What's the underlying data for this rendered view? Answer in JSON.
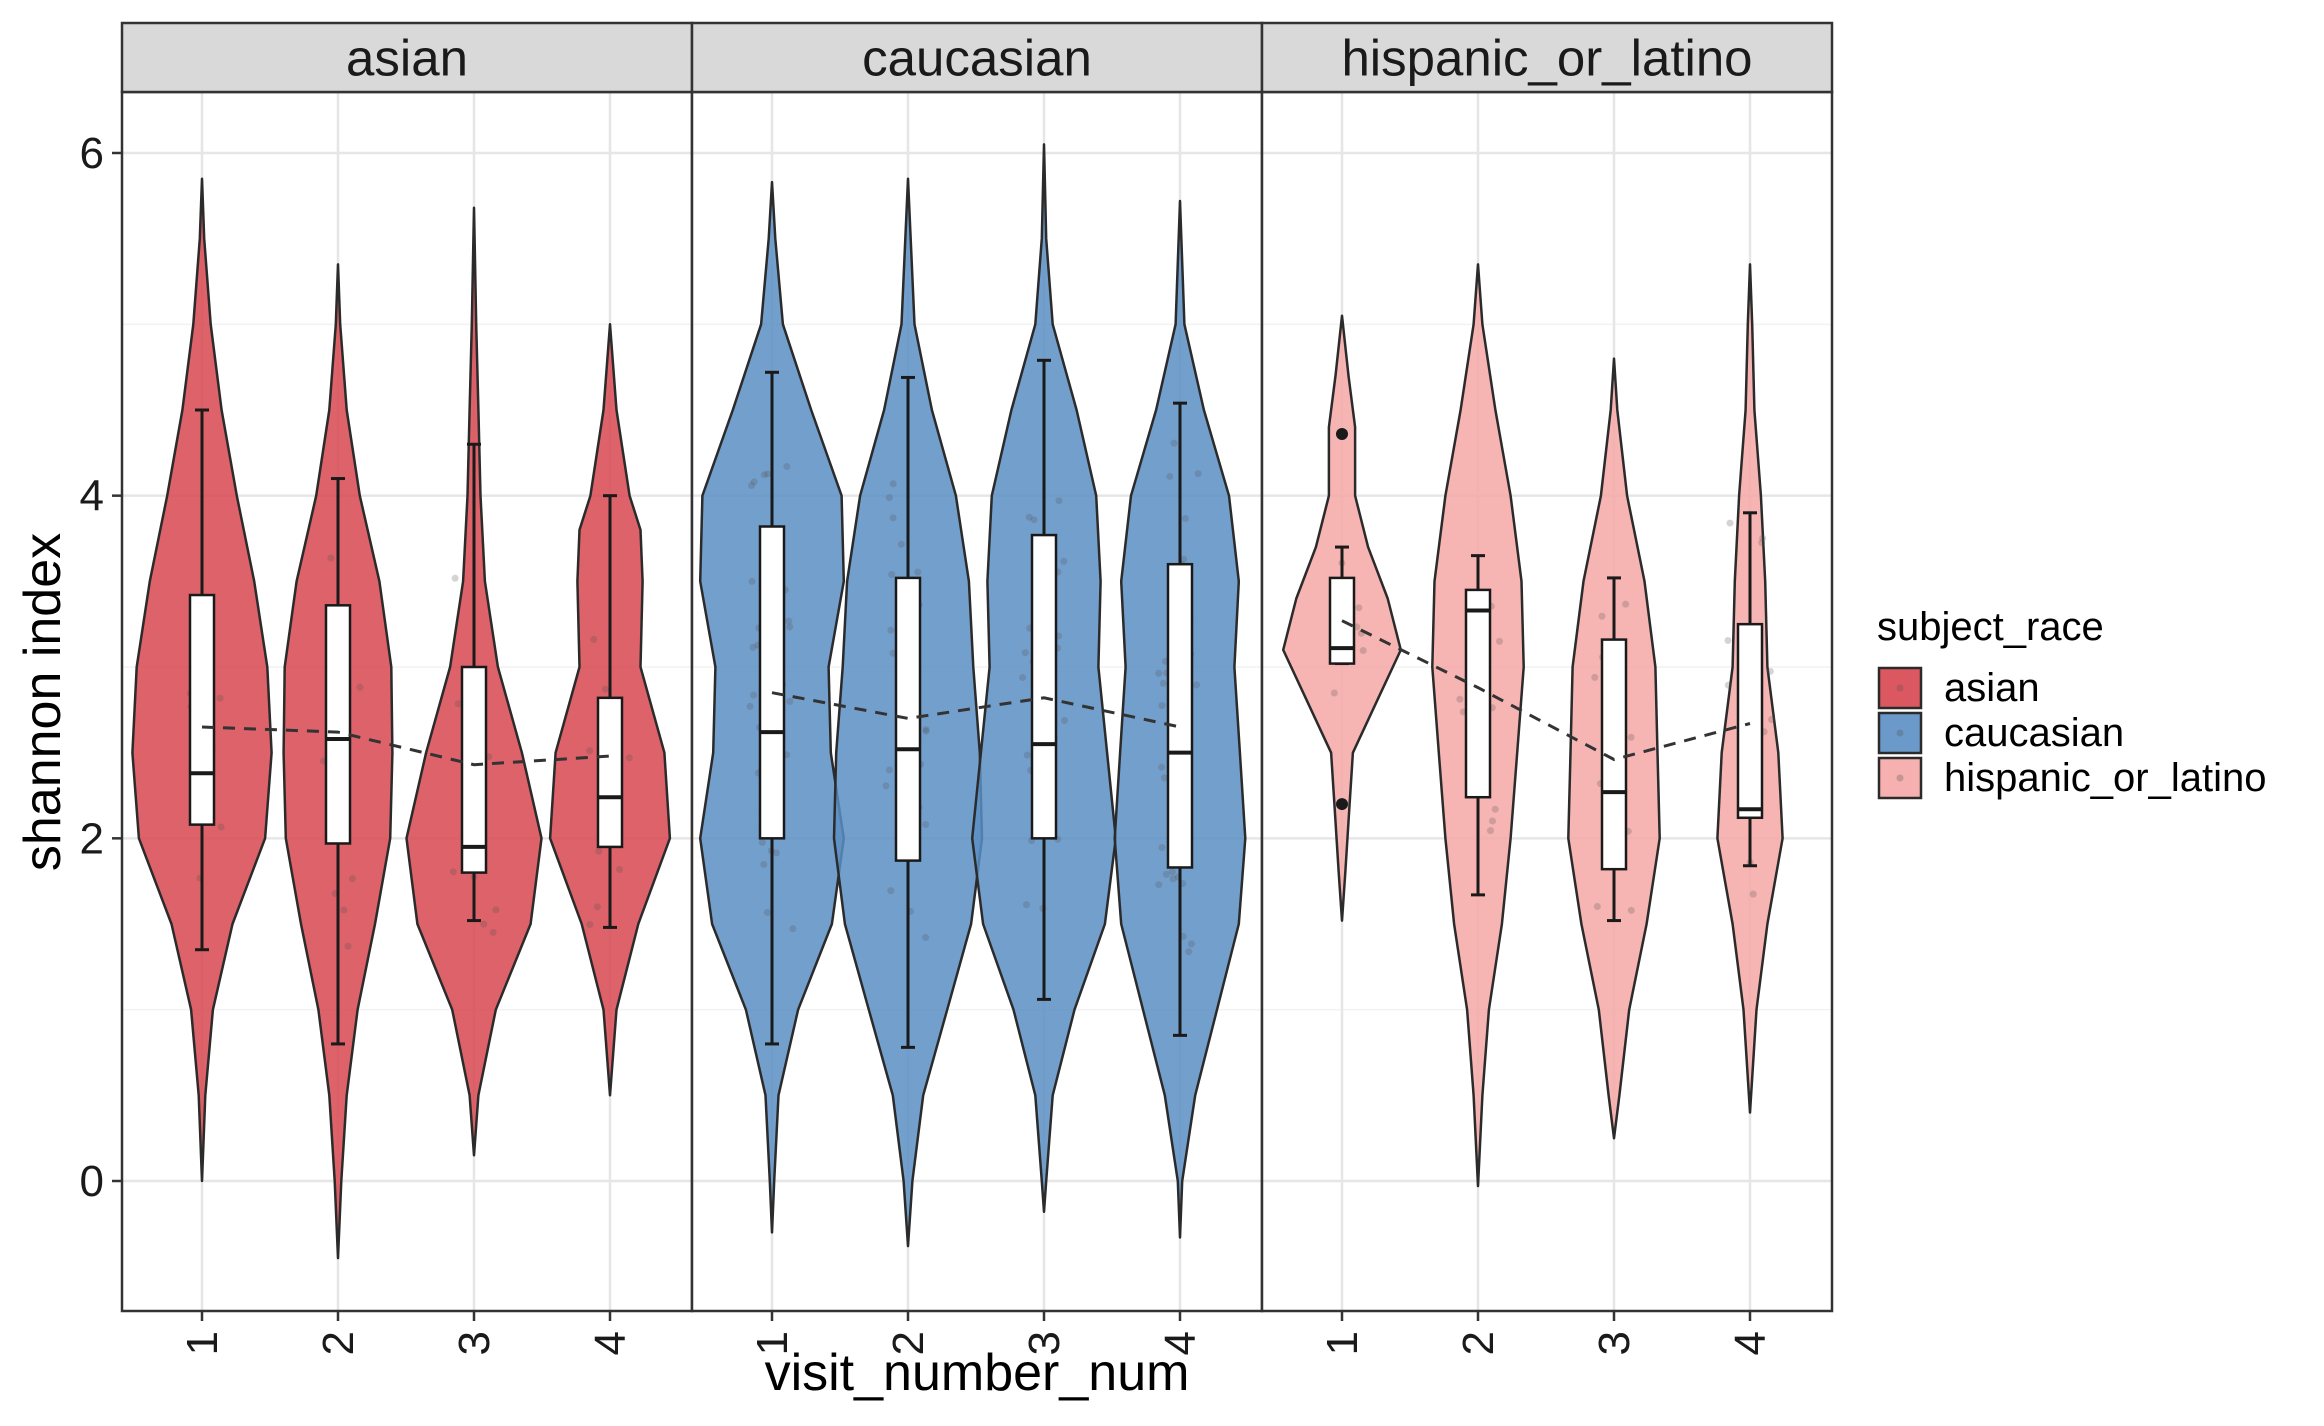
{
  "chart_data": {
    "type": "violin",
    "facet_variable": "subject_race",
    "facets": [
      "asian",
      "caucasian",
      "hispanic_or_latino"
    ],
    "xlabel": "visit_number_num",
    "ylabel": "shannon index",
    "x_categories": [
      "1",
      "2",
      "3",
      "4"
    ],
    "ylim": [
      -0.75,
      6.35
    ],
    "y_ticks": [
      0,
      2,
      4,
      6
    ],
    "grid": true,
    "legend": {
      "title": "subject_race",
      "position": "right",
      "entries": [
        {
          "label": "asian",
          "color": "#D7464F"
        },
        {
          "label": "caucasian",
          "color": "#5B8EC3"
        },
        {
          "label": "hispanic_or_latino",
          "color": "#F4A7A6"
        }
      ]
    },
    "trend_line": "dashed line connecting group means across visits",
    "groups": [
      {
        "facet": "asian",
        "color": "#D7464F",
        "visits": [
          {
            "visit": "1",
            "min": 0.0,
            "max": 5.85,
            "whisker_low": 1.35,
            "whisker_high": 4.5,
            "q1": 2.08,
            "median": 2.38,
            "q3": 3.42,
            "mean": 2.65,
            "outliers": [],
            "profile": [
              [
                0.0,
                0.0
              ],
              [
                0.5,
                0.03
              ],
              [
                1.0,
                0.1
              ],
              [
                1.5,
                0.28
              ],
              [
                2.0,
                0.58
              ],
              [
                2.5,
                0.64
              ],
              [
                3.0,
                0.6
              ],
              [
                3.5,
                0.48
              ],
              [
                4.0,
                0.32
              ],
              [
                4.5,
                0.18
              ],
              [
                5.0,
                0.08
              ],
              [
                5.5,
                0.02
              ],
              [
                5.85,
                0.0
              ]
            ]
          },
          {
            "visit": "2",
            "min": -0.45,
            "max": 5.35,
            "whisker_low": 0.8,
            "whisker_high": 4.1,
            "q1": 1.97,
            "median": 2.58,
            "q3": 3.36,
            "mean": 2.62,
            "outliers": [],
            "profile": [
              [
                -0.45,
                0.0
              ],
              [
                0.0,
                0.03
              ],
              [
                0.5,
                0.08
              ],
              [
                1.0,
                0.18
              ],
              [
                1.5,
                0.34
              ],
              [
                2.0,
                0.48
              ],
              [
                2.5,
                0.5
              ],
              [
                3.0,
                0.49
              ],
              [
                3.5,
                0.38
              ],
              [
                4.0,
                0.2
              ],
              [
                4.5,
                0.08
              ],
              [
                5.0,
                0.02
              ],
              [
                5.35,
                0.0
              ]
            ]
          },
          {
            "visit": "3",
            "min": 0.15,
            "max": 5.68,
            "whisker_low": 1.52,
            "whisker_high": 4.3,
            "q1": 1.8,
            "median": 1.95,
            "q3": 3.0,
            "mean": 2.43,
            "outliers": [],
            "profile": [
              [
                0.15,
                0.0
              ],
              [
                0.5,
                0.04
              ],
              [
                1.0,
                0.2
              ],
              [
                1.5,
                0.52
              ],
              [
                2.0,
                0.62
              ],
              [
                2.5,
                0.44
              ],
              [
                3.0,
                0.22
              ],
              [
                3.5,
                0.1
              ],
              [
                4.0,
                0.06
              ],
              [
                4.5,
                0.04
              ],
              [
                5.0,
                0.02
              ],
              [
                5.68,
                0.0
              ]
            ]
          },
          {
            "visit": "4",
            "min": 0.5,
            "max": 5.0,
            "whisker_low": 1.48,
            "whisker_high": 4.0,
            "q1": 1.95,
            "median": 2.24,
            "q3": 2.82,
            "mean": 2.48,
            "outliers": [],
            "profile": [
              [
                0.5,
                0.0
              ],
              [
                1.0,
                0.06
              ],
              [
                1.5,
                0.26
              ],
              [
                2.0,
                0.55
              ],
              [
                2.5,
                0.5
              ],
              [
                3.0,
                0.28
              ],
              [
                3.5,
                0.3
              ],
              [
                3.8,
                0.28
              ],
              [
                4.0,
                0.18
              ],
              [
                4.5,
                0.06
              ],
              [
                5.0,
                0.0
              ]
            ]
          }
        ]
      },
      {
        "facet": "caucasian",
        "color": "#5B8EC3",
        "visits": [
          {
            "visit": "1",
            "min": -0.3,
            "max": 5.83,
            "whisker_low": 0.8,
            "whisker_high": 4.72,
            "q1": 2.0,
            "median": 2.62,
            "q3": 3.82,
            "mean": 2.85,
            "outliers": [],
            "profile": [
              [
                -0.3,
                0.0
              ],
              [
                0.0,
                0.02
              ],
              [
                0.5,
                0.06
              ],
              [
                1.0,
                0.24
              ],
              [
                1.5,
                0.55
              ],
              [
                2.0,
                0.66
              ],
              [
                2.5,
                0.54
              ],
              [
                3.0,
                0.52
              ],
              [
                3.5,
                0.66
              ],
              [
                4.0,
                0.64
              ],
              [
                4.5,
                0.36
              ],
              [
                5.0,
                0.1
              ],
              [
                5.5,
                0.03
              ],
              [
                5.83,
                0.0
              ]
            ]
          },
          {
            "visit": "2",
            "min": -0.38,
            "max": 5.85,
            "whisker_low": 0.78,
            "whisker_high": 4.69,
            "q1": 1.87,
            "median": 2.52,
            "q3": 3.52,
            "mean": 2.7,
            "outliers": [],
            "profile": [
              [
                -0.38,
                0.0
              ],
              [
                0.0,
                0.04
              ],
              [
                0.5,
                0.14
              ],
              [
                1.0,
                0.36
              ],
              [
                1.5,
                0.58
              ],
              [
                2.0,
                0.68
              ],
              [
                2.5,
                0.66
              ],
              [
                3.0,
                0.6
              ],
              [
                3.5,
                0.56
              ],
              [
                4.0,
                0.44
              ],
              [
                4.5,
                0.22
              ],
              [
                5.0,
                0.06
              ],
              [
                5.85,
                0.0
              ]
            ]
          },
          {
            "visit": "3",
            "min": -0.18,
            "max": 6.05,
            "whisker_low": 1.06,
            "whisker_high": 4.79,
            "q1": 2.0,
            "median": 2.55,
            "q3": 3.77,
            "mean": 2.82,
            "outliers": [],
            "profile": [
              [
                -0.18,
                0.0
              ],
              [
                0.0,
                0.02
              ],
              [
                0.5,
                0.08
              ],
              [
                1.0,
                0.28
              ],
              [
                1.5,
                0.56
              ],
              [
                2.0,
                0.66
              ],
              [
                2.5,
                0.58
              ],
              [
                3.0,
                0.5
              ],
              [
                3.5,
                0.52
              ],
              [
                4.0,
                0.48
              ],
              [
                4.5,
                0.3
              ],
              [
                5.0,
                0.08
              ],
              [
                5.5,
                0.02
              ],
              [
                6.05,
                0.0
              ]
            ]
          },
          {
            "visit": "4",
            "min": -0.33,
            "max": 5.72,
            "whisker_low": 0.85,
            "whisker_high": 4.54,
            "q1": 1.83,
            "median": 2.5,
            "q3": 3.6,
            "mean": 2.65,
            "outliers": [],
            "profile": [
              [
                -0.33,
                0.0
              ],
              [
                0.0,
                0.02
              ],
              [
                0.5,
                0.14
              ],
              [
                1.0,
                0.34
              ],
              [
                1.5,
                0.54
              ],
              [
                2.0,
                0.6
              ],
              [
                2.5,
                0.55
              ],
              [
                3.0,
                0.5
              ],
              [
                3.5,
                0.54
              ],
              [
                4.0,
                0.45
              ],
              [
                4.5,
                0.22
              ],
              [
                5.0,
                0.04
              ],
              [
                5.72,
                0.0
              ]
            ]
          }
        ]
      },
      {
        "facet": "hispanic_or_latino",
        "color": "#F4A7A6",
        "visits": [
          {
            "visit": "1",
            "min": 1.52,
            "max": 5.05,
            "whisker_low": 3.02,
            "whisker_high": 3.7,
            "q1": 3.02,
            "median": 3.11,
            "q3": 3.52,
            "mean": 3.27,
            "outliers": [
              4.36,
              2.2
            ],
            "profile": [
              [
                1.52,
                0.0
              ],
              [
                1.8,
                0.03
              ],
              [
                2.2,
                0.07
              ],
              [
                2.5,
                0.1
              ],
              [
                2.8,
                0.32
              ],
              [
                3.1,
                0.54
              ],
              [
                3.4,
                0.42
              ],
              [
                3.7,
                0.24
              ],
              [
                4.0,
                0.12
              ],
              [
                4.4,
                0.12
              ],
              [
                4.7,
                0.06
              ],
              [
                5.05,
                0.0
              ]
            ]
          },
          {
            "visit": "2",
            "min": -0.03,
            "max": 5.35,
            "whisker_low": 1.67,
            "whisker_high": 3.65,
            "q1": 2.24,
            "median": 3.33,
            "q3": 3.45,
            "mean": 2.88,
            "outliers": [],
            "profile": [
              [
                -0.03,
                0.0
              ],
              [
                0.5,
                0.04
              ],
              [
                1.0,
                0.1
              ],
              [
                1.5,
                0.22
              ],
              [
                2.0,
                0.3
              ],
              [
                2.5,
                0.36
              ],
              [
                3.0,
                0.42
              ],
              [
                3.5,
                0.4
              ],
              [
                4.0,
                0.3
              ],
              [
                4.5,
                0.16
              ],
              [
                5.0,
                0.04
              ],
              [
                5.35,
                0.0
              ]
            ]
          },
          {
            "visit": "3",
            "min": 0.25,
            "max": 4.8,
            "whisker_low": 1.52,
            "whisker_high": 3.52,
            "q1": 1.82,
            "median": 2.27,
            "q3": 3.16,
            "mean": 2.46,
            "outliers": [],
            "profile": [
              [
                0.25,
                0.0
              ],
              [
                0.5,
                0.05
              ],
              [
                1.0,
                0.14
              ],
              [
                1.5,
                0.3
              ],
              [
                2.0,
                0.42
              ],
              [
                2.5,
                0.4
              ],
              [
                3.0,
                0.38
              ],
              [
                3.5,
                0.28
              ],
              [
                4.0,
                0.12
              ],
              [
                4.5,
                0.03
              ],
              [
                4.8,
                0.0
              ]
            ]
          },
          {
            "visit": "4",
            "min": 0.4,
            "max": 5.35,
            "whisker_low": 1.84,
            "whisker_high": 3.9,
            "q1": 2.12,
            "median": 2.17,
            "q3": 3.25,
            "mean": 2.67,
            "outliers": [],
            "profile": [
              [
                0.4,
                0.0
              ],
              [
                1.0,
                0.06
              ],
              [
                1.5,
                0.16
              ],
              [
                2.0,
                0.3
              ],
              [
                2.5,
                0.26
              ],
              [
                3.0,
                0.16
              ],
              [
                3.5,
                0.14
              ],
              [
                4.0,
                0.1
              ],
              [
                4.5,
                0.04
              ],
              [
                5.0,
                0.02
              ],
              [
                5.35,
                0.0
              ]
            ]
          }
        ]
      }
    ]
  }
}
